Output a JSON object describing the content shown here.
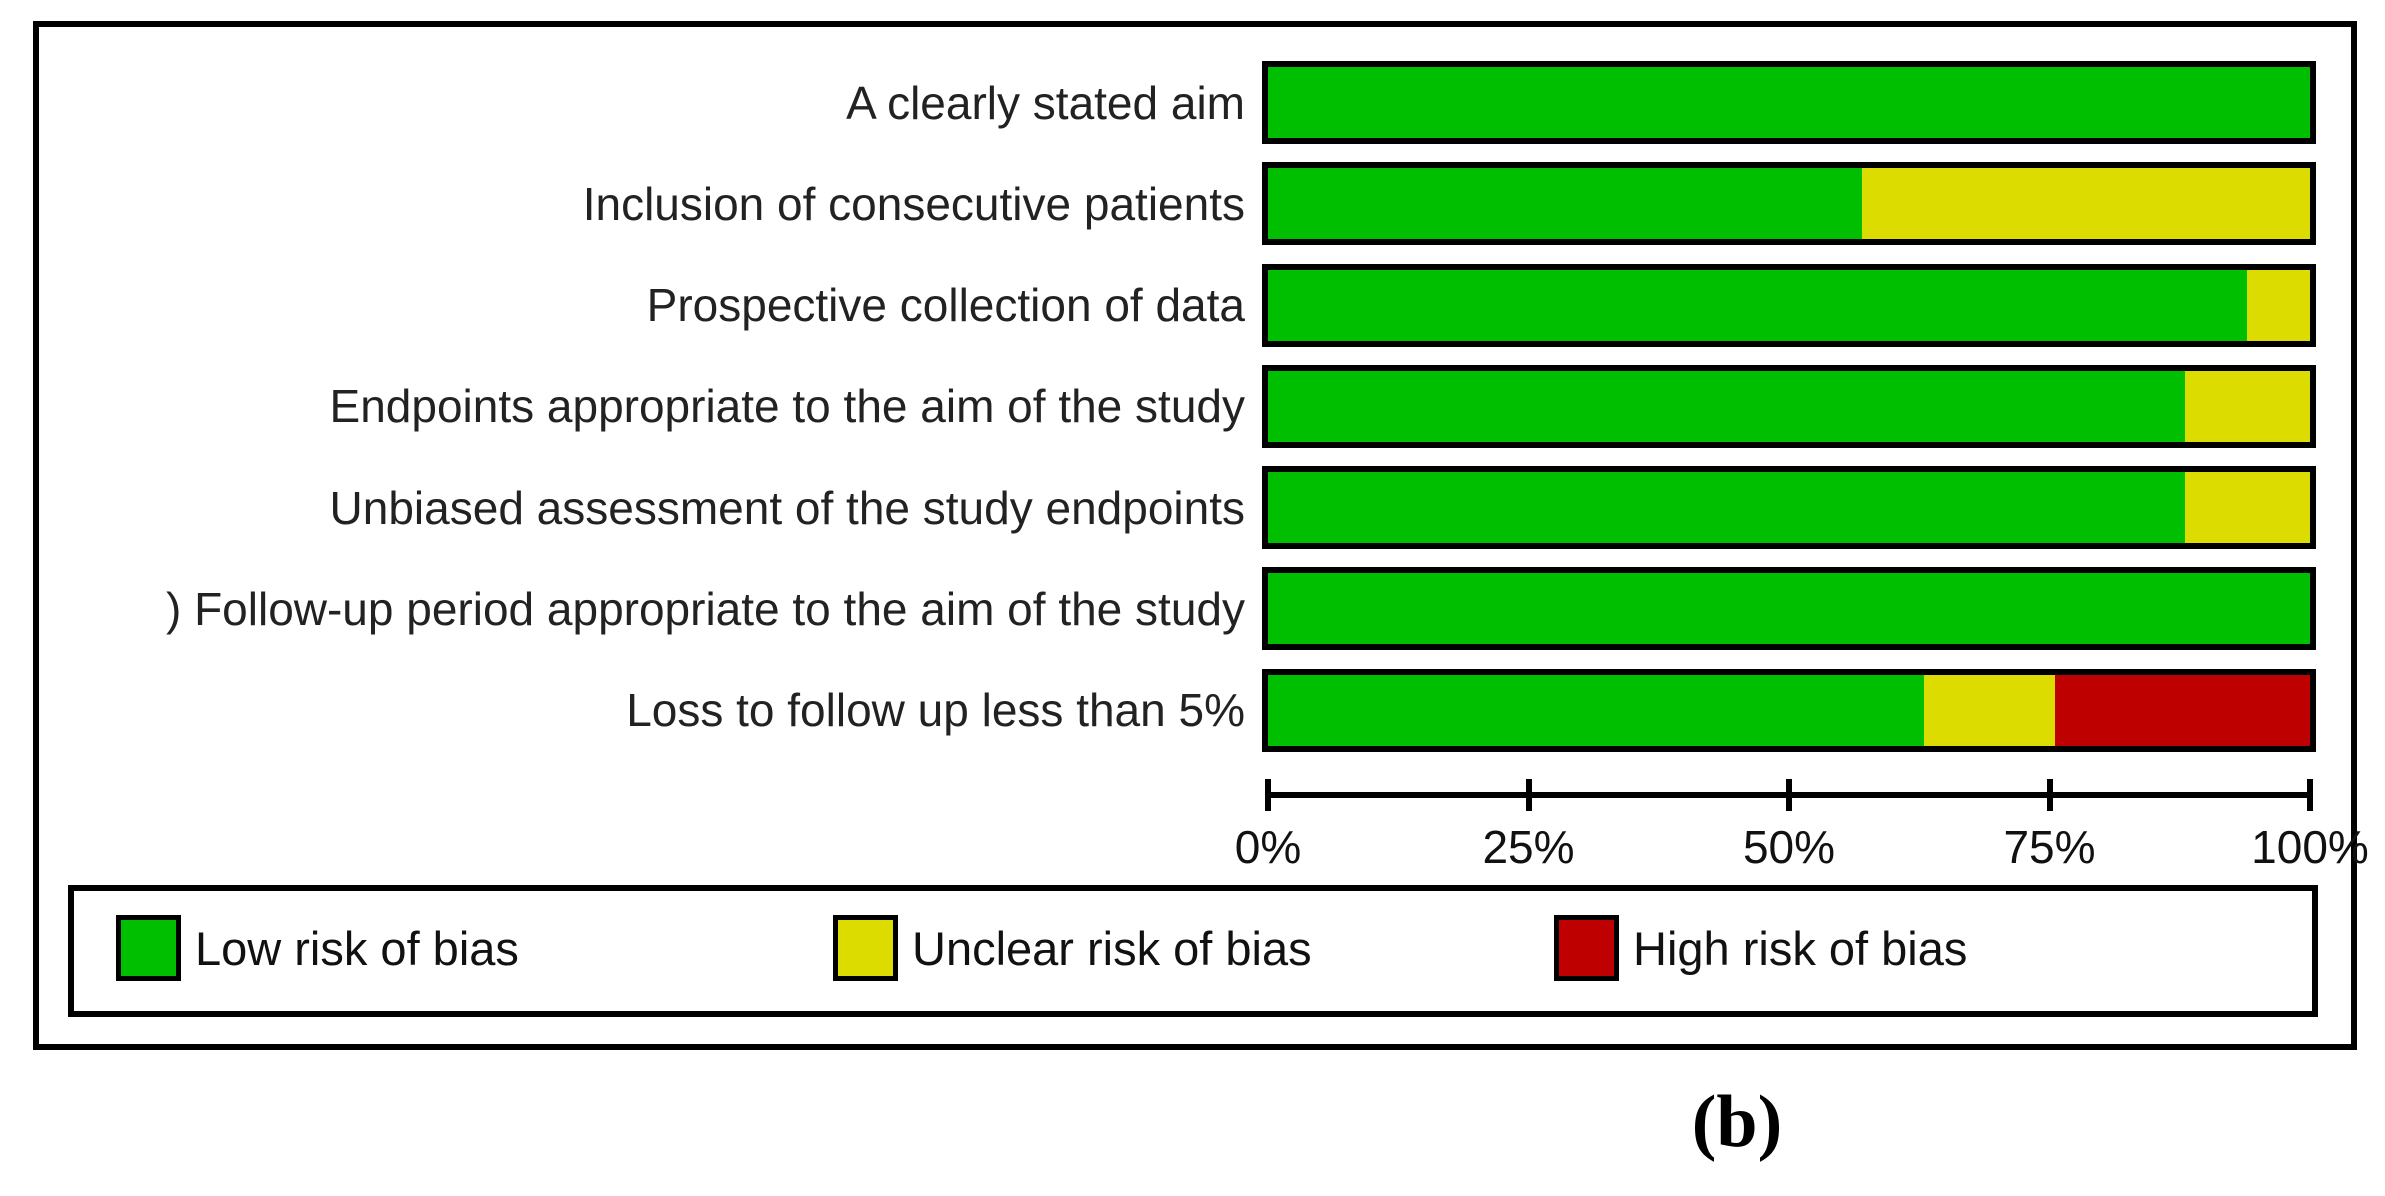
{
  "figure": {
    "caption": "(b)"
  },
  "chart_data": {
    "type": "bar",
    "orientation": "horizontal",
    "stacked": true,
    "title": "",
    "xlabel": "",
    "ylabel": "",
    "categories": [
      "A clearly stated aim",
      "Inclusion of consecutive patients",
      "Prospective collection of data",
      "Endpoints appropriate to the aim of the study",
      "Unbiased assessment of the study endpoints",
      ") Follow-up period appropriate to the aim of the study",
      "Loss to follow up less than 5%"
    ],
    "series": [
      {
        "name": "Low risk of bias",
        "color": "#00BE00",
        "values": [
          100,
          57,
          94,
          88,
          88,
          100,
          63
        ]
      },
      {
        "name": "Unclear risk of bias",
        "color": "#DCDC00",
        "values": [
          0,
          43,
          6,
          12,
          12,
          0,
          12.5
        ]
      },
      {
        "name": "High risk of bias",
        "color": "#BE0000",
        "values": [
          0,
          0,
          0,
          0,
          0,
          0,
          24.5
        ]
      }
    ],
    "x_ticks": [
      "0%",
      "25%",
      "50%",
      "75%",
      "100%"
    ],
    "x_range": [
      0,
      100
    ],
    "grid": false,
    "legend_position": "bottom"
  },
  "legend": {
    "items": [
      {
        "label": "Low risk of bias",
        "color": "#00BE00"
      },
      {
        "label": "Unclear risk of bias",
        "color": "#DCDC00"
      },
      {
        "label": "High risk of bias",
        "color": "#BE0000"
      }
    ]
  }
}
